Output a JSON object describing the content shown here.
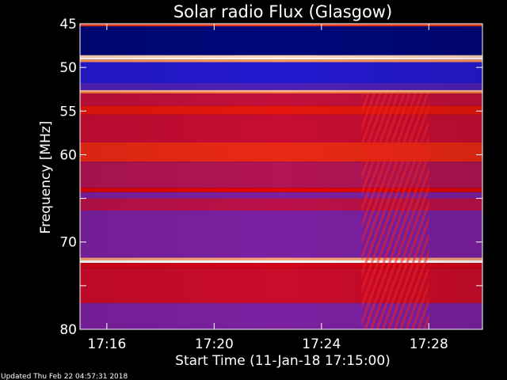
{
  "chart_data": {
    "type": "heatmap",
    "title": "Solar radio Flux (Glasgow)",
    "xlabel": "Start Time (11-Jan-18 17:15:00)",
    "ylabel": "Frequency [MHz]",
    "x_unit": "time (HH:MM)",
    "xlim": [
      "17:15:00",
      "17:30:00"
    ],
    "ylim": [
      45,
      80
    ],
    "y_inverted": true,
    "x_ticks": [
      "17:16",
      "17:20",
      "17:24",
      "17:28"
    ],
    "y_ticks": [
      45,
      50,
      55,
      60,
      65,
      70,
      75,
      80
    ],
    "y_tick_labels": [
      "45",
      "50",
      "55",
      "60",
      "",
      "70",
      "",
      "80"
    ],
    "colormap": [
      "#000040",
      "#0010e0",
      "#4020c0",
      "#8020a0",
      "#c01040",
      "#e00000",
      "#ff8040",
      "#ffffff"
    ],
    "frequency_bands": [
      {
        "from": 45.0,
        "to": 45.3,
        "intensity": 0.78
      },
      {
        "from": 45.3,
        "to": 48.6,
        "intensity": 0.05
      },
      {
        "from": 48.6,
        "to": 48.9,
        "intensity": 0.95
      },
      {
        "from": 48.9,
        "to": 49.1,
        "intensity": 1.0
      },
      {
        "from": 49.1,
        "to": 49.4,
        "intensity": 0.88
      },
      {
        "from": 49.4,
        "to": 51.8,
        "intensity": 0.22
      },
      {
        "from": 51.8,
        "to": 52.6,
        "intensity": 0.32
      },
      {
        "from": 52.6,
        "to": 52.8,
        "intensity": 0.92
      },
      {
        "from": 52.8,
        "to": 53.0,
        "intensity": 0.85
      },
      {
        "from": 53.0,
        "to": 54.4,
        "intensity": 0.58
      },
      {
        "from": 54.4,
        "to": 55.4,
        "intensity": 0.74
      },
      {
        "from": 55.4,
        "to": 58.6,
        "intensity": 0.6
      },
      {
        "from": 58.6,
        "to": 60.8,
        "intensity": 0.76
      },
      {
        "from": 60.8,
        "to": 63.8,
        "intensity": 0.54
      },
      {
        "from": 63.8,
        "to": 64.3,
        "intensity": 0.72
      },
      {
        "from": 64.3,
        "to": 65.0,
        "intensity": 0.42
      },
      {
        "from": 65.0,
        "to": 66.4,
        "intensity": 0.56
      },
      {
        "from": 66.4,
        "to": 71.8,
        "intensity": 0.42
      },
      {
        "from": 71.8,
        "to": 72.1,
        "intensity": 0.9
      },
      {
        "from": 72.1,
        "to": 72.4,
        "intensity": 1.0
      },
      {
        "from": 72.4,
        "to": 73.0,
        "intensity": 0.66
      },
      {
        "from": 73.0,
        "to": 77.0,
        "intensity": 0.62
      },
      {
        "from": 77.0,
        "to": 80.0,
        "intensity": 0.42
      }
    ],
    "bursts": [
      {
        "start": "17:25:30",
        "end": "17:28:00",
        "freq_from": 53.0,
        "freq_to": 80.0,
        "intensity": 0.8
      }
    ]
  },
  "footer_text": "Updated Thu Feb 22 04:57:31 2018"
}
